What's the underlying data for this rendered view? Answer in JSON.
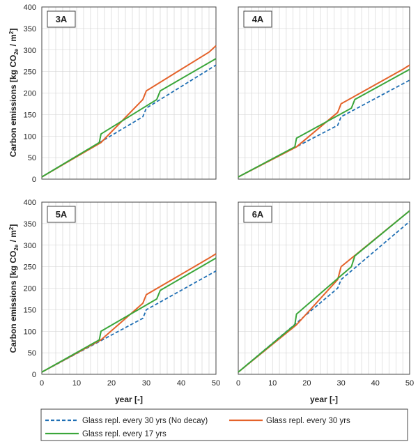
{
  "ylabel_parts": [
    "Carbon emissions [kg CO",
    "2e",
    " / m",
    "2",
    "]"
  ],
  "xlabel": "year [-]",
  "colors": {
    "no_decay": "#1f6fb4",
    "every30": "#e4622a",
    "every17": "#3aa63a",
    "grid": "#cfcfcf"
  },
  "legend": [
    {
      "key": "no_decay",
      "label": "Glass repl. every 30 yrs (No decay)",
      "dash": true
    },
    {
      "key": "every30",
      "label": "Glass repl. every 30 yrs",
      "dash": false
    },
    {
      "key": "every17",
      "label": "Glass repl. every 17 yrs",
      "dash": false
    }
  ],
  "chart_data": [
    {
      "type": "line",
      "panel": "3A",
      "xlim": [
        0,
        50
      ],
      "ylim": [
        0,
        400
      ],
      "xticks": [
        0,
        10,
        20,
        30,
        40,
        50
      ],
      "yticks": [
        0,
        50,
        100,
        150,
        200,
        250,
        300,
        350,
        400
      ],
      "series": [
        {
          "name": "Glass repl. every 30 yrs (No decay)",
          "key": "no_decay",
          "points": [
            [
              0,
              5
            ],
            [
              29,
              145
            ],
            [
              30,
              165
            ],
            [
              50,
              265
            ]
          ]
        },
        {
          "name": "Glass repl. every 30 yrs",
          "key": "every30",
          "points": [
            [
              0,
              5
            ],
            [
              17,
              85
            ],
            [
              29,
              185
            ],
            [
              30,
              205
            ],
            [
              48,
              295
            ],
            [
              50,
              310
            ]
          ]
        },
        {
          "name": "Glass repl. every 17 yrs",
          "key": "every17",
          "points": [
            [
              0,
              5
            ],
            [
              16.5,
              85
            ],
            [
              17,
              105
            ],
            [
              33,
              185
            ],
            [
              34,
              205
            ],
            [
              50,
              280
            ]
          ]
        }
      ]
    },
    {
      "type": "line",
      "panel": "4A",
      "xlim": [
        0,
        50
      ],
      "ylim": [
        0,
        400
      ],
      "xticks": [
        0,
        10,
        20,
        30,
        40,
        50
      ],
      "yticks": [
        0,
        50,
        100,
        150,
        200,
        250,
        300,
        350,
        400
      ],
      "series": [
        {
          "name": "Glass repl. every 30 yrs (No decay)",
          "key": "no_decay",
          "points": [
            [
              0,
              5
            ],
            [
              29,
              125
            ],
            [
              30,
              145
            ],
            [
              50,
              230
            ]
          ]
        },
        {
          "name": "Glass repl. every 30 yrs",
          "key": "every30",
          "points": [
            [
              0,
              5
            ],
            [
              17,
              75
            ],
            [
              29,
              155
            ],
            [
              30,
              175
            ],
            [
              48,
              255
            ],
            [
              50,
              265
            ]
          ]
        },
        {
          "name": "Glass repl. every 17 yrs",
          "key": "every17",
          "points": [
            [
              0,
              5
            ],
            [
              16.5,
              75
            ],
            [
              17,
              95
            ],
            [
              33,
              165
            ],
            [
              34,
              185
            ],
            [
              50,
              255
            ]
          ]
        }
      ]
    },
    {
      "type": "line",
      "panel": "5A",
      "xlim": [
        0,
        50
      ],
      "ylim": [
        0,
        400
      ],
      "xticks": [
        0,
        10,
        20,
        30,
        40,
        50
      ],
      "yticks": [
        0,
        50,
        100,
        150,
        200,
        250,
        300,
        350,
        400
      ],
      "series": [
        {
          "name": "Glass repl. every 30 yrs (No decay)",
          "key": "no_decay",
          "points": [
            [
              0,
              5
            ],
            [
              29,
              130
            ],
            [
              30,
              150
            ],
            [
              50,
              240
            ]
          ]
        },
        {
          "name": "Glass repl. every 30 yrs",
          "key": "every30",
          "points": [
            [
              0,
              5
            ],
            [
              17,
              80
            ],
            [
              29,
              165
            ],
            [
              30,
              185
            ],
            [
              48,
              270
            ],
            [
              50,
              280
            ]
          ]
        },
        {
          "name": "Glass repl. every 17 yrs",
          "key": "every17",
          "points": [
            [
              0,
              5
            ],
            [
              16.5,
              80
            ],
            [
              17,
              100
            ],
            [
              33,
              175
            ],
            [
              34,
              195
            ],
            [
              50,
              270
            ]
          ]
        }
      ]
    },
    {
      "type": "line",
      "panel": "6A",
      "xlim": [
        0,
        50
      ],
      "ylim": [
        0,
        400
      ],
      "xticks": [
        0,
        10,
        20,
        30,
        40,
        50
      ],
      "yticks": [
        0,
        50,
        100,
        150,
        200,
        250,
        300,
        350,
        400
      ],
      "series": [
        {
          "name": "Glass repl. every 30 yrs (No decay)",
          "key": "no_decay",
          "points": [
            [
              0,
              5
            ],
            [
              29,
              200
            ],
            [
              30,
              220
            ],
            [
              50,
              355
            ]
          ]
        },
        {
          "name": "Glass repl. every 30 yrs",
          "key": "every30",
          "points": [
            [
              0,
              5
            ],
            [
              17,
              115
            ],
            [
              29,
              220
            ],
            [
              30,
              250
            ],
            [
              50,
              380
            ]
          ]
        },
        {
          "name": "Glass repl. every 17 yrs",
          "key": "every17",
          "points": [
            [
              0,
              5
            ],
            [
              16.5,
              115
            ],
            [
              17,
              140
            ],
            [
              33,
              250
            ],
            [
              34,
              275
            ],
            [
              50,
              380
            ]
          ]
        }
      ]
    }
  ]
}
